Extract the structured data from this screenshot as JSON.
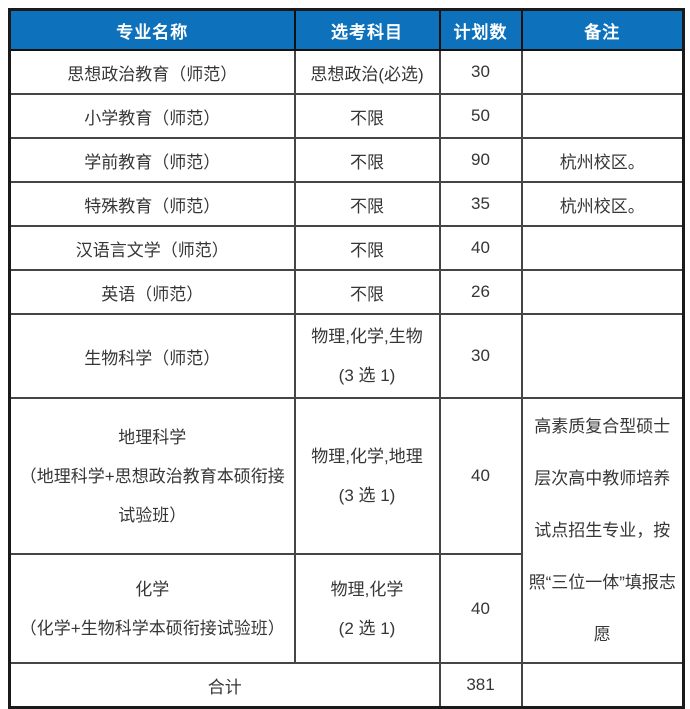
{
  "colors": {
    "header_bg": "#0e71bc",
    "header_text": "#ffffff",
    "body_text": "#363636",
    "border": "#1a1a1a"
  },
  "table": {
    "headers": {
      "major": "专业名称",
      "subjects": "选考科目",
      "plan": "计划数",
      "remark": "备注"
    },
    "rows": [
      {
        "major": "思想政治教育（师范）",
        "subject": "思想政治(必选)",
        "plan": "30",
        "remark": ""
      },
      {
        "major": "小学教育（师范）",
        "subject": "不限",
        "plan": "50",
        "remark": ""
      },
      {
        "major": "学前教育（师范）",
        "subject": "不限",
        "plan": "90",
        "remark": "杭州校区。"
      },
      {
        "major": "特殊教育（师范）",
        "subject": "不限",
        "plan": "35",
        "remark": "杭州校区。"
      },
      {
        "major": "汉语言文学（师范）",
        "subject": "不限",
        "plan": "40",
        "remark": ""
      },
      {
        "major": "英语（师范）",
        "subject": "不限",
        "plan": "26",
        "remark": ""
      },
      {
        "major": "生物科学（师范）",
        "subject_line1": "物理,化学,生物",
        "subject_line2": "(3 选 1)",
        "plan": "30",
        "remark": ""
      },
      {
        "major_line1": "地理科学",
        "major_line2": "（地理科学+思想政治教育本硕衔接试验班）",
        "subject_line1": "物理,化学,地理",
        "subject_line2": "(3 选 1)",
        "plan": "40",
        "remark": "高素质复合型硕士层次高中教师培养试点招生专业，按照“三位一体”填报志愿"
      },
      {
        "major_line1": "化学",
        "major_line2": "（化学+生物科学本硕衔接试验班）",
        "subject_line1": "物理,化学",
        "subject_line2": "(2 选 1)",
        "plan": "40"
      }
    ],
    "footer": {
      "label": "合计",
      "total": "381",
      "remark": ""
    }
  }
}
